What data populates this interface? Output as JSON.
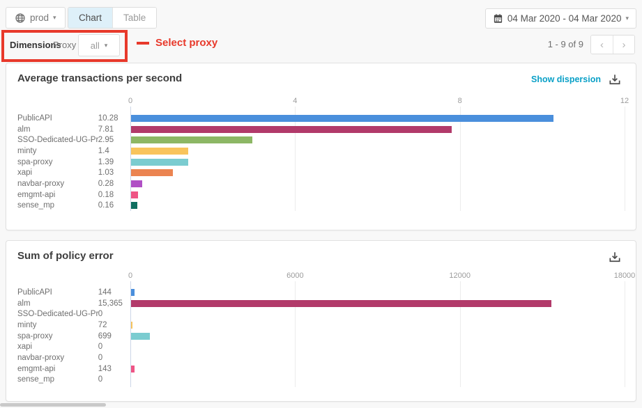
{
  "toolbar": {
    "env_label": "prod",
    "tabs": [
      {
        "label": "Chart",
        "active": true
      },
      {
        "label": "Table",
        "active": false
      }
    ],
    "date_range": "04 Mar 2020 - 04 Mar 2020"
  },
  "filters": {
    "dimensions_label": "Dimensions",
    "dimension_name": "Proxy",
    "dimension_value": "all",
    "annotation_text": "Select proxy",
    "annotation_color": "#e8392b"
  },
  "pagination": {
    "label": "1 - 9 of 9",
    "prev": "‹",
    "next": "›"
  },
  "icons": {
    "env": "globe-icon",
    "date": "calendar-icon",
    "download": "download-icon",
    "prev": "chevron-left-icon",
    "next": "chevron-right-icon"
  },
  "colors": {
    "active_tab_bg": "#def0f9",
    "link": "#0aa0c7",
    "annotation_red": "#e8392b",
    "axis_line": "#ccd6e8"
  },
  "chart_data": [
    {
      "type": "bar",
      "orientation": "horizontal",
      "title": "Average transactions per second",
      "link_action": "Show dispersion",
      "categories": [
        "PublicAPI",
        "alm",
        "SSO-Dedicated-UG-Pr...",
        "minty",
        "spa-proxy",
        "xapi",
        "navbar-proxy",
        "emgmt-api",
        "sense_mp"
      ],
      "values": [
        10.28,
        7.81,
        2.95,
        1.4,
        1.39,
        1.03,
        0.28,
        0.18,
        0.16
      ],
      "value_labels": [
        "10.28",
        "7.81",
        "2.95",
        "1.4",
        "1.39",
        "1.03",
        "0.28",
        "0.18",
        "0.16"
      ],
      "tick_labels": [
        "0",
        "4",
        "8",
        "12"
      ],
      "xlim": [
        0,
        12
      ],
      "grid": true,
      "legend": false,
      "bar_colors": [
        "#4a8fdc",
        "#b23a6a",
        "#8db765",
        "#f8c45c",
        "#7bccd0",
        "#eb8451",
        "#b050c5",
        "#ef5585",
        "#0f6f60"
      ]
    },
    {
      "type": "bar",
      "orientation": "horizontal",
      "title": "Sum of policy error",
      "categories": [
        "PublicAPI",
        "alm",
        "SSO-Dedicated-UG-Pr...",
        "minty",
        "spa-proxy",
        "xapi",
        "navbar-proxy",
        "emgmt-api",
        "sense_mp"
      ],
      "values": [
        144,
        15365,
        0,
        72,
        699,
        0,
        0,
        143,
        0
      ],
      "value_labels": [
        "144",
        "15,365",
        "0",
        "72",
        "699",
        "0",
        "0",
        "143",
        "0"
      ],
      "tick_labels": [
        "0",
        "6000",
        "12000",
        "18000"
      ],
      "xlim": [
        0,
        18000
      ],
      "grid": true,
      "legend": false,
      "bar_colors": [
        "#4a8fdc",
        "#b23a6a",
        "#8db765",
        "#f8c45c",
        "#7bccd0",
        "#eb8451",
        "#b050c5",
        "#ef5585",
        "#0f6f60"
      ]
    }
  ]
}
